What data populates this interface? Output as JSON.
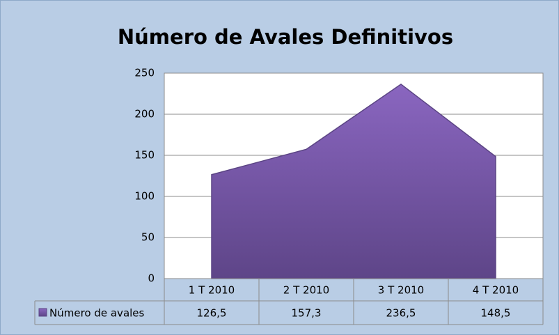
{
  "chart_data": {
    "type": "area",
    "title": "Número de Avales Definitivos",
    "categories": [
      "1 T 2010",
      "2 T 2010",
      "3 T 2010",
      "4 T 2010"
    ],
    "series": [
      {
        "name": "Número de avales",
        "color": "#7b5ca8",
        "values": [
          126.5,
          157.3,
          236.5,
          148.5
        ],
        "value_labels": [
          "126,5",
          "157,3",
          "236,5",
          "148,5"
        ]
      }
    ],
    "ylim": [
      0,
      250
    ],
    "yticks": [
      0,
      50,
      100,
      150,
      200,
      250
    ],
    "grid": true,
    "data_table": true
  }
}
